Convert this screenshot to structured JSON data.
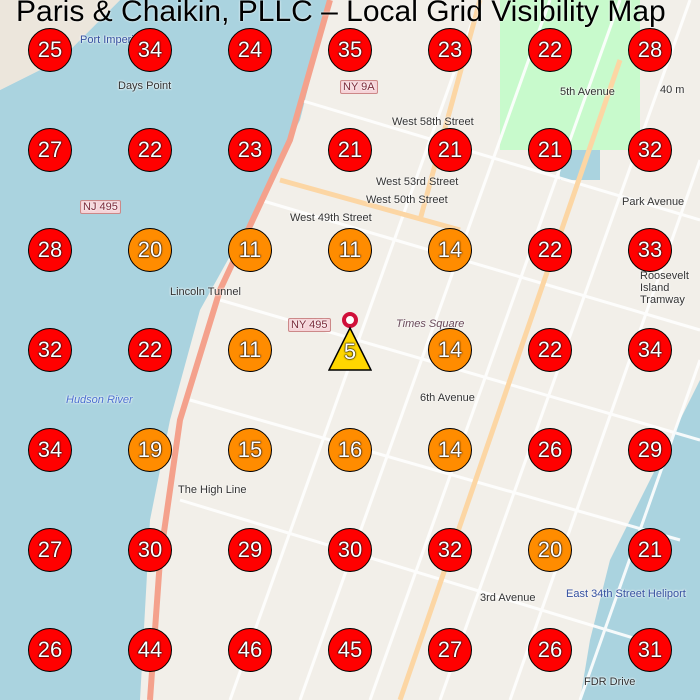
{
  "title": "Paris & Chaikin, PLLC – Local Grid Visibility Map",
  "colors": {
    "high_rank": "#ff0000",
    "mid_rank": "#ff8c00",
    "top_rank": "#ffd700",
    "water": "#aad3df",
    "land": "#f2efe9",
    "park": "#c8facc"
  },
  "center_marker": {
    "rank": "5",
    "icon": "location-pin-icon"
  },
  "map_labels": [
    "NY 9A",
    "Port Imperial",
    "Days Point",
    "Lincoln Tunnel",
    "NJ 495",
    "NY 495",
    "West 58th Street",
    "West 53rd Street",
    "West 50th Street",
    "West 49th Street",
    "Times Square",
    "Hudson River",
    "The High Line",
    "6th Avenue",
    "3rd Avenue",
    "5th Avenue",
    "Park Avenue",
    "East 34th Street Heliport",
    "FDR Drive",
    "Roosevelt Island Tramway",
    "40 m"
  ],
  "grid": [
    [
      "25",
      "34",
      "24",
      "35",
      "23",
      "22",
      "28"
    ],
    [
      "27",
      "22",
      "23",
      "21",
      "21",
      "21",
      "32"
    ],
    [
      "28",
      "20",
      "11",
      "11",
      "14",
      "22",
      "33"
    ],
    [
      "32",
      "22",
      "11",
      "5",
      "14",
      "22",
      "34"
    ],
    [
      "34",
      "19",
      "15",
      "16",
      "14",
      "26",
      "29"
    ],
    [
      "27",
      "30",
      "29",
      "30",
      "32",
      "20",
      "21"
    ],
    [
      "26",
      "44",
      "46",
      "45",
      "27",
      "26",
      "31"
    ]
  ]
}
